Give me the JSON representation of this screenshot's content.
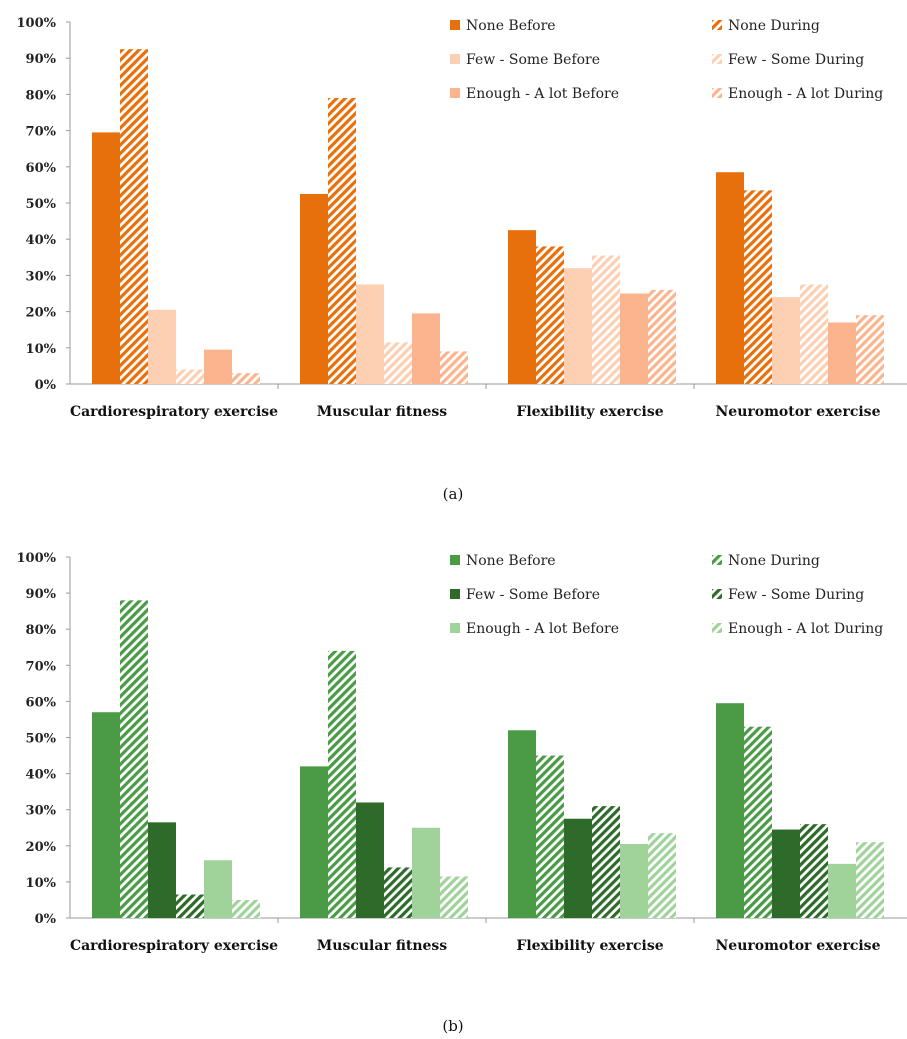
{
  "chart_data": [
    {
      "type": "bar",
      "panel": "(a)",
      "categories": [
        "Cardiorespiratory exercise",
        "Muscular fitness",
        "Flexibility exercise",
        "Neuromotor exercise"
      ],
      "ylim": [
        0,
        100
      ],
      "y_ticks": [
        "0%",
        "10%",
        "20%",
        "30%",
        "40%",
        "50%",
        "60%",
        "70%",
        "80%",
        "90%",
        "100%"
      ],
      "grid": false,
      "legend_position": "top-right",
      "series": [
        {
          "name": "None Before",
          "values": [
            69.5,
            52.5,
            42.5,
            58.5
          ],
          "color": "#e8700c",
          "pattern": "solid"
        },
        {
          "name": "None During",
          "values": [
            92.5,
            79,
            38,
            53.5
          ],
          "color": "#e8700c",
          "pattern": "hatched"
        },
        {
          "name": "Few - Some Before",
          "values": [
            20.5,
            27.5,
            32,
            24
          ],
          "color": "#fdd0b4",
          "pattern": "solid"
        },
        {
          "name": "Few - Some During",
          "values": [
            4,
            11.5,
            35.5,
            27.5
          ],
          "color": "#fdd0b4",
          "pattern": "hatched"
        },
        {
          "name": "Enough - A lot Before",
          "values": [
            9.5,
            19.5,
            25,
            17
          ],
          "color": "#fbb48e",
          "pattern": "solid"
        },
        {
          "name": "Enough - A lot During",
          "values": [
            3,
            9,
            26,
            19
          ],
          "color": "#fbb48e",
          "pattern": "hatched"
        }
      ]
    },
    {
      "type": "bar",
      "panel": "(b)",
      "categories": [
        "Cardiorespiratory exercise",
        "Muscular fitness",
        "Flexibility exercise",
        "Neuromotor exercise"
      ],
      "ylim": [
        0,
        100
      ],
      "y_ticks": [
        "0%",
        "10%",
        "20%",
        "30%",
        "40%",
        "50%",
        "60%",
        "70%",
        "80%",
        "90%",
        "100%"
      ],
      "grid": false,
      "legend_position": "top-right",
      "series": [
        {
          "name": "None Before",
          "values": [
            57,
            42,
            52,
            59.5
          ],
          "color": "#4a9a46",
          "pattern": "solid"
        },
        {
          "name": "None During",
          "values": [
            88,
            74,
            45,
            53
          ],
          "color": "#4a9a46",
          "pattern": "hatched"
        },
        {
          "name": "Few - Some Before",
          "values": [
            26.5,
            32,
            27.5,
            24.5
          ],
          "color": "#2e6a2a",
          "pattern": "solid"
        },
        {
          "name": "Few - Some During",
          "values": [
            6.5,
            14,
            31,
            26
          ],
          "color": "#2e6a2a",
          "pattern": "hatched"
        },
        {
          "name": "Enough - A lot Before",
          "values": [
            16,
            25,
            20.5,
            15
          ],
          "color": "#9fd39a",
          "pattern": "solid"
        },
        {
          "name": "Enough - A lot During",
          "values": [
            5,
            11.5,
            23.5,
            21
          ],
          "color": "#9fd39a",
          "pattern": "hatched"
        }
      ]
    }
  ]
}
